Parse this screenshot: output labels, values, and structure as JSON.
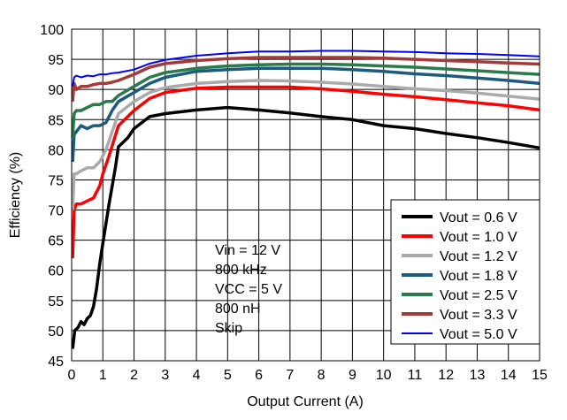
{
  "chart_data": {
    "type": "line",
    "title": "",
    "xlabel": "Output Current (A)",
    "ylabel": "Efficiency (%)",
    "xlim": [
      0,
      15
    ],
    "ylim": [
      45,
      100
    ],
    "xticks": [
      "0",
      "1",
      "2",
      "3",
      "4",
      "5",
      "6",
      "7",
      "8",
      "9",
      "10",
      "11",
      "12",
      "13",
      "14",
      "15"
    ],
    "yticks": [
      "45",
      "50",
      "55",
      "60",
      "65",
      "70",
      "75",
      "80",
      "85",
      "90",
      "95",
      "100"
    ],
    "grid": true,
    "legend_position": "bottom-right",
    "annotation": [
      "Vin = 12 V",
      "800 kHz",
      "VCC = 5 V",
      "800 nH",
      "Skip"
    ],
    "series": [
      {
        "name": "Vout = 0.6 V",
        "color": "#000000",
        "points": [
          [
            0.03,
            47
          ],
          [
            0.1,
            50
          ],
          [
            0.2,
            50.5
          ],
          [
            0.3,
            51.5
          ],
          [
            0.4,
            51
          ],
          [
            0.5,
            52
          ],
          [
            0.6,
            52.5
          ],
          [
            0.7,
            54
          ],
          [
            0.8,
            57
          ],
          [
            0.9,
            61
          ],
          [
            1.0,
            64.5
          ],
          [
            1.2,
            71
          ],
          [
            1.4,
            77
          ],
          [
            1.5,
            80.5
          ],
          [
            1.8,
            82
          ],
          [
            2.0,
            83.5
          ],
          [
            2.5,
            85.5
          ],
          [
            3,
            86
          ],
          [
            4,
            86.6
          ],
          [
            5,
            87
          ],
          [
            6,
            86.6
          ],
          [
            7,
            86.1
          ],
          [
            8,
            85.5
          ],
          [
            9,
            85
          ],
          [
            10,
            84
          ],
          [
            11,
            83.5
          ],
          [
            12,
            82.7
          ],
          [
            13,
            82
          ],
          [
            14,
            81.2
          ],
          [
            15,
            80.3
          ]
        ]
      },
      {
        "name": "Vout = 1.0 V",
        "color": "#ff0000",
        "points": [
          [
            0.03,
            62
          ],
          [
            0.08,
            70
          ],
          [
            0.15,
            71
          ],
          [
            0.3,
            71
          ],
          [
            0.5,
            71.5
          ],
          [
            0.7,
            72
          ],
          [
            0.9,
            74
          ],
          [
            1.0,
            76
          ],
          [
            1.2,
            79
          ],
          [
            1.5,
            84
          ],
          [
            2,
            86.5
          ],
          [
            2.5,
            88.5
          ],
          [
            3,
            89.5
          ],
          [
            4,
            90.2
          ],
          [
            5,
            90.4
          ],
          [
            6,
            90.4
          ],
          [
            7,
            90.4
          ],
          [
            8,
            90.1
          ],
          [
            9,
            89.7
          ],
          [
            10,
            89.2
          ],
          [
            11,
            88.8
          ],
          [
            12,
            88.3
          ],
          [
            13,
            87.8
          ],
          [
            14,
            87.3
          ],
          [
            15,
            86.6
          ]
        ]
      },
      {
        "name": "Vout = 1.2 V",
        "color": "#aaaaaa",
        "points": [
          [
            0.03,
            70
          ],
          [
            0.08,
            76
          ],
          [
            0.15,
            76
          ],
          [
            0.3,
            76.5
          ],
          [
            0.5,
            77
          ],
          [
            0.7,
            77
          ],
          [
            0.9,
            78
          ],
          [
            1.1,
            80
          ],
          [
            1.3,
            83
          ],
          [
            1.5,
            86
          ],
          [
            2,
            88
          ],
          [
            2.5,
            89.5
          ],
          [
            3,
            90.3
          ],
          [
            4,
            91
          ],
          [
            5,
            91.3
          ],
          [
            6,
            91.5
          ],
          [
            7,
            91.4
          ],
          [
            8,
            91.2
          ],
          [
            9,
            90.9
          ],
          [
            10,
            90.5
          ],
          [
            11,
            90.1
          ],
          [
            12,
            89.8
          ],
          [
            13,
            89.4
          ],
          [
            14,
            88.9
          ],
          [
            15,
            88.4
          ]
        ]
      },
      {
        "name": "Vout = 1.8 V",
        "color": "#1c5a7e",
        "points": [
          [
            0.03,
            78
          ],
          [
            0.08,
            82.5
          ],
          [
            0.15,
            83
          ],
          [
            0.3,
            84
          ],
          [
            0.5,
            83.5
          ],
          [
            0.7,
            84
          ],
          [
            0.9,
            84
          ],
          [
            1.1,
            84.5
          ],
          [
            1.3,
            86.5
          ],
          [
            1.5,
            88
          ],
          [
            2,
            89.5
          ],
          [
            2.5,
            91
          ],
          [
            3,
            92
          ],
          [
            4,
            93
          ],
          [
            5,
            93.3
          ],
          [
            6,
            93.5
          ],
          [
            7,
            93.5
          ],
          [
            8,
            93.5
          ],
          [
            9,
            93.3
          ],
          [
            10,
            93
          ],
          [
            11,
            92.6
          ],
          [
            12,
            92.3
          ],
          [
            13,
            91.9
          ],
          [
            14,
            91.5
          ],
          [
            15,
            91
          ]
        ]
      },
      {
        "name": "Vout = 2.5 V",
        "color": "#2a7a4c",
        "points": [
          [
            0.03,
            82
          ],
          [
            0.08,
            86
          ],
          [
            0.15,
            86.5
          ],
          [
            0.3,
            86.5
          ],
          [
            0.5,
            87
          ],
          [
            0.7,
            87.5
          ],
          [
            0.9,
            87.5
          ],
          [
            1.1,
            88
          ],
          [
            1.3,
            88
          ],
          [
            1.5,
            89
          ],
          [
            2,
            90.5
          ],
          [
            2.5,
            92
          ],
          [
            3,
            92.8
          ],
          [
            4,
            93.5
          ],
          [
            5,
            93.9
          ],
          [
            6,
            94.1
          ],
          [
            7,
            94.2
          ],
          [
            8,
            94.2
          ],
          [
            9,
            94.1
          ],
          [
            10,
            93.9
          ],
          [
            11,
            93.7
          ],
          [
            12,
            93.4
          ],
          [
            13,
            93.1
          ],
          [
            14,
            92.8
          ],
          [
            15,
            92.5
          ]
        ]
      },
      {
        "name": "Vout = 3.3 V",
        "color": "#a33b3b",
        "points": [
          [
            0.03,
            88
          ],
          [
            0.08,
            91
          ],
          [
            0.15,
            90
          ],
          [
            0.3,
            90.5
          ],
          [
            0.5,
            90.5
          ],
          [
            0.7,
            90.8
          ],
          [
            0.9,
            91
          ],
          [
            1.1,
            91
          ],
          [
            1.3,
            91.2
          ],
          [
            1.5,
            91.5
          ],
          [
            2,
            92.5
          ],
          [
            2.5,
            93.7
          ],
          [
            3,
            94.3
          ],
          [
            4,
            94.8
          ],
          [
            5,
            95.1
          ],
          [
            6,
            95.3
          ],
          [
            7,
            95.3
          ],
          [
            8,
            95.3
          ],
          [
            9,
            95.3
          ],
          [
            10,
            95.2
          ],
          [
            11,
            95
          ],
          [
            12,
            94.8
          ],
          [
            13,
            94.6
          ],
          [
            14,
            94.4
          ],
          [
            15,
            94.2
          ]
        ]
      },
      {
        "name": "Vout = 5.0 V",
        "color": "#0000ff",
        "points": [
          [
            0.03,
            90.5
          ],
          [
            0.08,
            92
          ],
          [
            0.15,
            92.3
          ],
          [
            0.3,
            92
          ],
          [
            0.5,
            92.3
          ],
          [
            0.7,
            92.2
          ],
          [
            0.9,
            92.5
          ],
          [
            1.1,
            92.5
          ],
          [
            1.3,
            92.7
          ],
          [
            1.5,
            92.8
          ],
          [
            2,
            93.3
          ],
          [
            2.5,
            94.3
          ],
          [
            3,
            94.9
          ],
          [
            4,
            95.6
          ],
          [
            5,
            96
          ],
          [
            6,
            96.3
          ],
          [
            7,
            96.3
          ],
          [
            8,
            96.4
          ],
          [
            9,
            96.4
          ],
          [
            10,
            96.3
          ],
          [
            11,
            96.2
          ],
          [
            12,
            96
          ],
          [
            13,
            95.9
          ],
          [
            14,
            95.7
          ],
          [
            15,
            95.5
          ]
        ]
      }
    ]
  }
}
